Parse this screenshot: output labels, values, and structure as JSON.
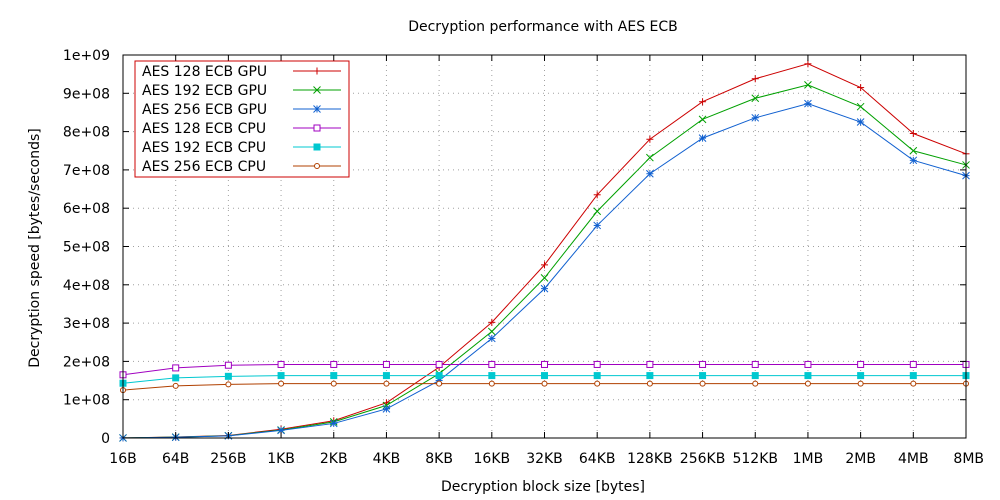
{
  "chart_data": {
    "type": "line",
    "title": "Decryption performance with AES ECB",
    "xlabel": "Decryption block size [bytes]",
    "ylabel": "Decryption speed [bytes/seconds]",
    "categories": [
      "16B",
      "64B",
      "256B",
      "1KB",
      "2KB",
      "4KB",
      "8KB",
      "16KB",
      "32KB",
      "64KB",
      "128KB",
      "256KB",
      "512KB",
      "1MB",
      "2MB",
      "4MB",
      "8MB"
    ],
    "ylim": [
      0,
      1000000000
    ],
    "y_ticks": [
      0,
      100000000,
      200000000,
      300000000,
      400000000,
      500000000,
      600000000,
      700000000,
      800000000,
      900000000,
      1000000000
    ],
    "y_tick_labels": [
      "0",
      "1e+08",
      "2e+08",
      "3e+08",
      "4e+08",
      "5e+08",
      "6e+08",
      "7e+08",
      "8e+08",
      "9e+08",
      "1e+09"
    ],
    "grid": true,
    "legend_position": "top-left",
    "series": [
      {
        "name": "AES 128 ECB GPU",
        "color": "#cc0000",
        "marker": "plus",
        "values": [
          200000,
          2500000,
          6500000,
          23000000,
          45000000,
          92000000,
          185000000,
          302000000,
          452000000,
          635000000,
          780000000,
          878000000,
          938000000,
          977000000,
          915000000,
          795000000,
          742000000
        ]
      },
      {
        "name": "AES 192 ECB GPU",
        "color": "#00a000",
        "marker": "cross",
        "values": [
          200000,
          2200000,
          6000000,
          21000000,
          42000000,
          85000000,
          168000000,
          278000000,
          418000000,
          592000000,
          732000000,
          832000000,
          887000000,
          922000000,
          865000000,
          750000000,
          713000000
        ]
      },
      {
        "name": "AES 256 ECB GPU",
        "color": "#1060d0",
        "marker": "star",
        "values": [
          200000,
          2000000,
          5500000,
          20000000,
          38000000,
          76000000,
          150000000,
          260000000,
          390000000,
          555000000,
          690000000,
          783000000,
          836000000,
          873000000,
          825000000,
          725000000,
          685000000
        ]
      },
      {
        "name": "AES 128 ECB CPU",
        "color": "#a000c0",
        "marker": "open-square",
        "values": [
          165000000,
          183000000,
          190000000,
          192000000,
          192000000,
          192000000,
          192000000,
          192000000,
          192000000,
          192000000,
          192000000,
          192000000,
          192000000,
          192000000,
          192000000,
          192000000,
          192000000
        ]
      },
      {
        "name": "AES 192 ECB CPU",
        "color": "#00c8d0",
        "marker": "filled-square",
        "values": [
          143000000,
          157000000,
          161000000,
          163000000,
          163000000,
          163000000,
          163000000,
          163000000,
          163000000,
          163000000,
          163000000,
          163000000,
          163000000,
          163000000,
          163000000,
          163000000,
          163000000
        ]
      },
      {
        "name": "AES 256 ECB CPU",
        "color": "#b04000",
        "marker": "open-circle",
        "values": [
          125000000,
          136000000,
          140000000,
          142000000,
          142000000,
          142000000,
          142000000,
          142000000,
          142000000,
          142000000,
          142000000,
          142000000,
          142000000,
          142000000,
          142000000,
          142000000,
          142000000
        ]
      }
    ]
  }
}
